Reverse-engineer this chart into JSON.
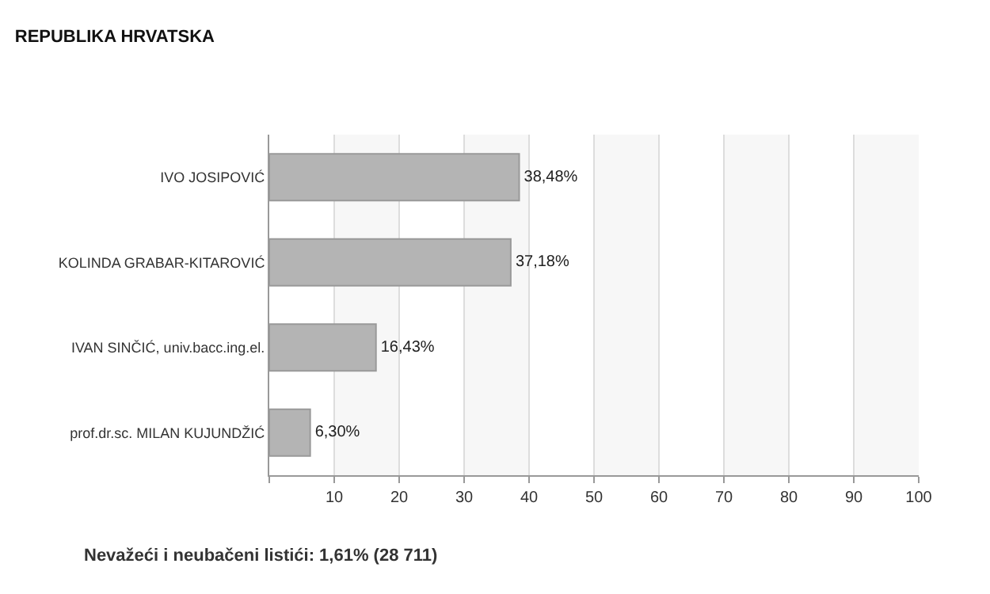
{
  "chart_data": {
    "type": "bar",
    "orientation": "horizontal",
    "title": "REPUBLIKA HRVATSKA",
    "categories": [
      "IVO JOSIPOVIĆ",
      "KOLINDA GRABAR-KITAROVIĆ",
      "IVAN SINČIĆ, univ.bacc.ing.el.",
      "prof.dr.sc. MILAN KUJUNDŽIĆ"
    ],
    "values": [
      38.48,
      37.18,
      16.43,
      6.3
    ],
    "value_labels": [
      "38,48%",
      "37,18%",
      "16,43%",
      "6,30%"
    ],
    "color": "#b4b4b4",
    "xlim": [
      0,
      100
    ],
    "xticks": [
      {
        "value": 0,
        "label": null
      },
      10,
      20,
      30,
      40,
      50,
      60,
      70,
      80,
      90,
      100
    ],
    "grid": "x",
    "bands": [
      {
        "axis": "x",
        "from": 10,
        "to": 20,
        "color": "#f7f7f7"
      },
      {
        "axis": "x",
        "from": 30,
        "to": 40,
        "color": "#f7f7f7"
      },
      {
        "axis": "x",
        "from": 50,
        "to": 60,
        "color": "#f7f7f7"
      },
      {
        "axis": "x",
        "from": 70,
        "to": 80,
        "color": "#f7f7f7"
      },
      {
        "axis": "x",
        "from": 90,
        "to": 100,
        "color": "#f7f7f7"
      }
    ],
    "annotations": [
      "Nevažeći i neubačeni listići: 1,61% (28 711)"
    ]
  }
}
